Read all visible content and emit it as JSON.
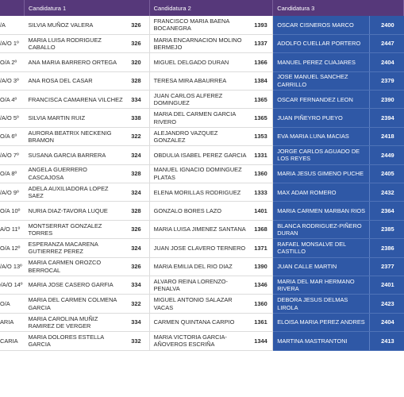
{
  "header": {
    "col0": "",
    "cand1": "Candidatura 1",
    "cand2": "Candidatura 2",
    "cand3": "Candidatura 3"
  },
  "rows": [
    {
      "prefix": "/A",
      "c1_name": "SILVIA MUÑOZ VALERA",
      "c1_votes": "326",
      "c2_name": "FRANCISCO MARIA BAENA BOCANEGRA",
      "c2_votes": "1393",
      "c3_name": "OSCAR CISNEROS MARCO",
      "c3_votes": "2400"
    },
    {
      "prefix": "/A/O 1º",
      "c1_name": "MARIA LUISA RODRIGUEZ CABALLO",
      "c1_votes": "326",
      "c2_name": "MARIA ENCARNACION MOLINO BERMEJO",
      "c2_votes": "1337",
      "c3_name": "ADOLFO CUELLAR PORTERO",
      "c3_votes": "2447"
    },
    {
      "prefix": "O/A 2º",
      "c1_name": "ANA MARIA BARRERO ORTEGA",
      "c1_votes": "320",
      "c2_name": "MIGUEL DELGADO DURAN",
      "c2_votes": "1366",
      "c3_name": "MANUEL PEREZ CUAJARES",
      "c3_votes": "2404"
    },
    {
      "prefix": "/A/O 3º",
      "c1_name": "ANA ROSA DEL CASAR",
      "c1_votes": "328",
      "c2_name": "TERESA MIRA ABAURREA",
      "c2_votes": "1384",
      "c3_name": "JOSE MANUEL SANCHEZ CARRILLO",
      "c3_votes": "2379"
    },
    {
      "prefix": "O/A 4º",
      "c1_name": "FRANCISCA CAMARENA VILCHEZ",
      "c1_votes": "334",
      "c2_name": "JUAN CARLOS ALFEREZ DOMINGUEZ",
      "c2_votes": "1365",
      "c3_name": "OSCAR FERNANDEZ LEON",
      "c3_votes": "2390"
    },
    {
      "prefix": "/A/O 5º",
      "c1_name": "SILVIA MARTIN RUIZ",
      "c1_votes": "338",
      "c2_name": "MARIA DEL CARMEN GARCIA RIVERO",
      "c2_votes": "1365",
      "c3_name": "JUAN PIÑEYRO PUEYO",
      "c3_votes": "2394"
    },
    {
      "prefix": "O/A 6º",
      "c1_name": "AURORA BEATRIX NECKENIG BRAMON",
      "c1_votes": "322",
      "c2_name": "ALEJANDRO VAZQUEZ GONZALEZ",
      "c2_votes": "1353",
      "c3_name": "EVA MARIA LUNA MACIAS",
      "c3_votes": "2418"
    },
    {
      "prefix": "/A/O 7º",
      "c1_name": "SUSANA GARCIA BARRERA",
      "c1_votes": "324",
      "c2_name": "OBDULIA ISABEL PEREZ GARCIA",
      "c2_votes": "1331",
      "c3_name": "JORGE CARLOS AGUADO DE LOS REYES",
      "c3_votes": "2449"
    },
    {
      "prefix": "O/A 8º",
      "c1_name": "ANGELA GUERRERO CASCAJOSA",
      "c1_votes": "328",
      "c2_name": "MANUEL IGNACIO DOMINGUEZ PLATAS",
      "c2_votes": "1360",
      "c3_name": "MARIA JESUS GIMENO PUCHE",
      "c3_votes": "2405"
    },
    {
      "prefix": "/A/O 9º",
      "c1_name": "ADELA AUXILIADORA LOPEZ SAEZ",
      "c1_votes": "324",
      "c2_name": "ELENA MORILLAS RODRIGUEZ",
      "c2_votes": "1333",
      "c3_name": "MAX ADAM ROMERO",
      "c3_votes": "2432"
    },
    {
      "prefix": "O/A 10º",
      "c1_name": "NURIA DIAZ-TAVORA LUQUE",
      "c1_votes": "328",
      "c2_name": "GONZALO BORES LAZO",
      "c2_votes": "1401",
      "c3_name": "MARIA CARMEN MARBAN RIOS",
      "c3_votes": "2364"
    },
    {
      "prefix": "A/O 11º",
      "c1_name": "MONTSERRAT GONZALEZ TORRES",
      "c1_votes": "326",
      "c2_name": "MARIA LUISA JIMENEZ SANTANA",
      "c2_votes": "1368",
      "c3_name": "BLANCA RODRIGUEZ-PIÑERO DURAN",
      "c3_votes": "2385"
    },
    {
      "prefix": "O/A 12º",
      "c1_name": "ESPERANZA MACARENA GUTIERREZ PEREZ",
      "c1_votes": "324",
      "c2_name": "JUAN JOSE CLAVERO TERNERO",
      "c2_votes": "1371",
      "c3_name": "RAFAEL MONSALVE DEL CASTILLO",
      "c3_votes": "2386"
    },
    {
      "prefix": "/A/O 13º",
      "c1_name": "MARIA CARMEN OROZCO BERROCAL",
      "c1_votes": "326",
      "c2_name": "MARIA EMILIA DEL RIO DIAZ",
      "c2_votes": "1390",
      "c3_name": "JUAN CALLE MARTIN",
      "c3_votes": "2377"
    },
    {
      "prefix": "O/A/O 14º",
      "c1_name": "MARIA JOSE CASERO GARFIA",
      "c1_votes": "334",
      "c2_name": "ALVARO REINA LORENZO-PENALVA",
      "c2_votes": "1346",
      "c3_name": "MARIA DEL MAR HERMANO RIVERA",
      "c3_votes": "2401"
    },
    {
      "prefix": "O/A",
      "c1_name": "MARIA DEL CARMEN COLMENA GARCIA",
      "c1_votes": "322",
      "c2_name": "MIGUEL ANTONIO SALAZAR VACAS",
      "c2_votes": "1360",
      "c3_name": "DEBORA JESUS DELMAS LIROLA",
      "c3_votes": "2423"
    },
    {
      "prefix": "ARIA",
      "c1_name": "MARIA CAROLINA MUÑIZ RAMIREZ DE VERGER",
      "c1_votes": "334",
      "c2_name": "CARMEN QUINTANA CARPIO",
      "c2_votes": "1361",
      "c3_name": "ELOISA MARIA PEREZ ANDRES",
      "c3_votes": "2404"
    },
    {
      "prefix": "CARIA",
      "c1_name": "MARIA DOLORES ESTELLA GARCIA",
      "c1_votes": "332",
      "c2_name": "MARIA VICTORIA GARCIA-AÑOVEROS ESCRIÑA",
      "c2_votes": "1344",
      "c3_name": "MARTINA MASTRANTONI",
      "c3_votes": "2413"
    }
  ],
  "colors": {
    "header_bg": "#56387a",
    "candidatura3_bg": "#2f58a6",
    "text": "#2a2a2a",
    "row_rule": "#dcdcdc"
  }
}
